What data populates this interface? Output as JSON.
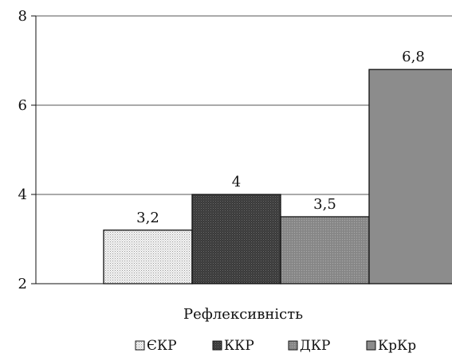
{
  "chart_data": {
    "type": "bar",
    "categories": [
      "Рефлексивність"
    ],
    "category_label": "Рефлексивність",
    "series": [
      {
        "name": "ЄКР",
        "values": [
          3.2
        ],
        "label": "3,2",
        "color": "#eeeeee",
        "pattern": "dots"
      },
      {
        "name": "ККР",
        "values": [
          4
        ],
        "label": "4",
        "color": "#404040",
        "pattern": "dense-dots"
      },
      {
        "name": "ДКР",
        "values": [
          3.5
        ],
        "label": "3,5",
        "color": "#8f8f8f",
        "pattern": "dots"
      },
      {
        "name": "КрКр",
        "values": [
          6.8
        ],
        "label": "6,8",
        "color": "#8c8c8c",
        "pattern": "solid"
      }
    ],
    "ylim": [
      2,
      8
    ],
    "yticks": [
      2,
      4,
      6,
      8
    ],
    "ytick_labels": [
      "2",
      "4",
      "6",
      "8"
    ],
    "grid": true,
    "legend_position": "bottom",
    "title": "",
    "xlabel": "",
    "ylabel": ""
  }
}
